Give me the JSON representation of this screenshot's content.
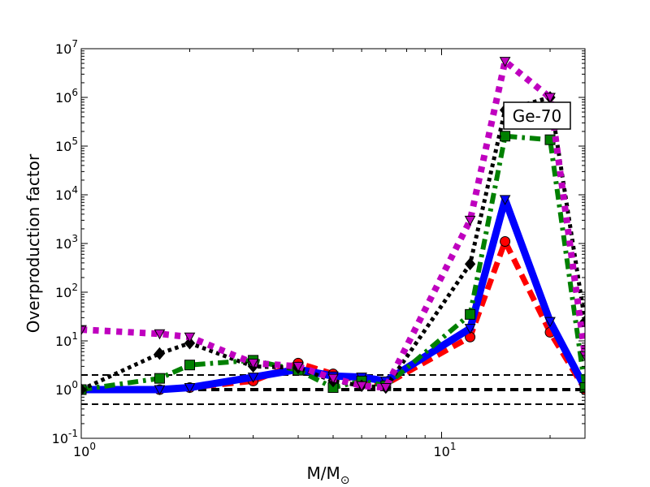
{
  "chart_data": {
    "type": "line",
    "title": "",
    "xlabel": "M/M",
    "xlabel_sub": "⊙",
    "ylabel": "Overproduction factor",
    "xscale": "log",
    "yscale": "log",
    "xlim": [
      1,
      25
    ],
    "ylim": [
      0.1,
      10000000
    ],
    "x_ticks": [
      {
        "value": 1,
        "base": "10",
        "exp": "0"
      },
      {
        "value": 10,
        "base": "10",
        "exp": "1"
      }
    ],
    "y_ticks": [
      {
        "value": 0.1,
        "base": "10",
        "exp": "-1"
      },
      {
        "value": 1,
        "base": "10",
        "exp": "0"
      },
      {
        "value": 10,
        "base": "10",
        "exp": "1"
      },
      {
        "value": 100,
        "base": "10",
        "exp": "2"
      },
      {
        "value": 1000,
        "base": "10",
        "exp": "3"
      },
      {
        "value": 10000,
        "base": "10",
        "exp": "4"
      },
      {
        "value": 100000,
        "base": "10",
        "exp": "5"
      },
      {
        "value": 1000000,
        "base": "10",
        "exp": "6"
      },
      {
        "value": 10000000,
        "base": "10",
        "exp": "7"
      }
    ],
    "annotation": "Ge-70",
    "reference_lines": [
      {
        "y": 2,
        "style": "dashed",
        "width": 2
      },
      {
        "y": 1,
        "style": "dashed",
        "width": 4
      },
      {
        "y": 0.5,
        "style": "dashed",
        "width": 2
      }
    ],
    "series": [
      {
        "color": "#ff0000",
        "linestyle": "dashed",
        "linewidth": 7,
        "marker": "circle",
        "x": [
          1,
          1.65,
          2,
          3,
          4,
          5,
          6,
          7,
          12,
          15,
          20,
          25
        ],
        "y": [
          1.0,
          1.0,
          1.1,
          1.5,
          3.5,
          2.1,
          1.5,
          1.3,
          12,
          1100,
          15,
          1.0
        ]
      },
      {
        "color": "#0000ff",
        "linestyle": "solid",
        "linewidth": 9,
        "marker": "triangle-down",
        "x": [
          1,
          1.65,
          2,
          3,
          4,
          5,
          6,
          7,
          12,
          15,
          20,
          25
        ],
        "y": [
          1.0,
          1.0,
          1.1,
          1.8,
          2.6,
          1.9,
          1.8,
          1.5,
          18,
          8000,
          25,
          1.1
        ]
      },
      {
        "color": "#008000",
        "linestyle": "dashdot",
        "linewidth": 6,
        "marker": "square",
        "x": [
          1,
          1.65,
          2,
          3,
          4,
          5,
          6,
          7,
          12,
          15,
          20,
          25
        ],
        "y": [
          1.0,
          1.7,
          3.2,
          4.0,
          2.5,
          1.1,
          1.5,
          1.2,
          35,
          160000,
          135000,
          1.1
        ]
      },
      {
        "color": "#000000",
        "linestyle": "dotted",
        "linewidth": 5,
        "marker": "diamond",
        "x": [
          1,
          1.65,
          2,
          3,
          4,
          5,
          6,
          7,
          12,
          15,
          20,
          25
        ],
        "y": [
          1.0,
          5.5,
          9.0,
          3.0,
          2.8,
          1.5,
          1.2,
          1.1,
          380,
          550000,
          1000000,
          25
        ]
      },
      {
        "color": "#bf00bf",
        "linestyle": "dotted",
        "linewidth": 8,
        "marker": "triangle-down",
        "x": [
          1,
          1.65,
          2,
          3,
          4,
          5,
          6,
          7,
          12,
          15,
          20,
          25
        ],
        "y": [
          17,
          14,
          12,
          3.5,
          3.0,
          1.7,
          1.2,
          1.1,
          3000,
          5500000,
          1000000,
          5
        ]
      }
    ]
  }
}
